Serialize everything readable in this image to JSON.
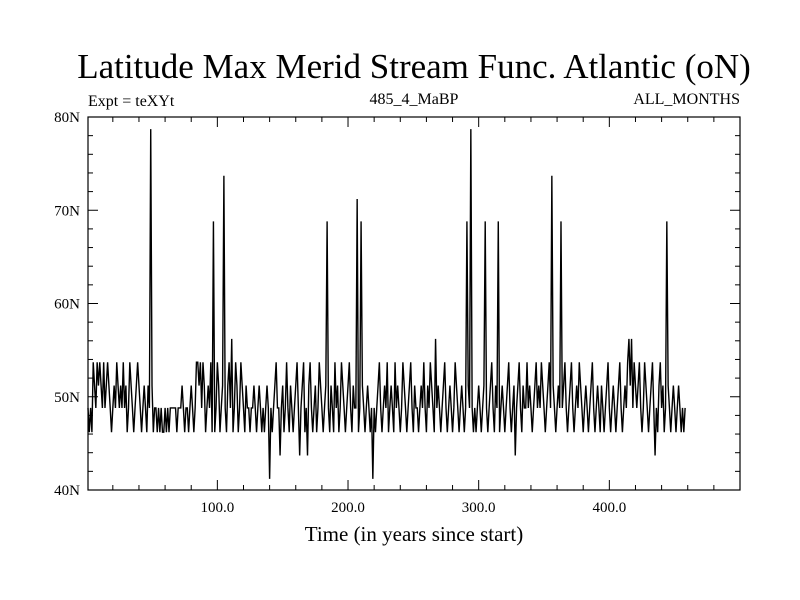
{
  "chart_data": {
    "type": "line",
    "title": "Latitude Max Merid Stream Func. Atlantic (oN)",
    "subtitle_left": "Expt = teXYt",
    "subtitle_center": "485_4_MaBP",
    "subtitle_right": "ALL_MONTHS",
    "xlabel": "Time (in years since start)",
    "ylabel": "",
    "xlim": [
      1,
      500
    ],
    "ylim": [
      40,
      80
    ],
    "x_ticks": [
      100,
      200,
      300,
      400
    ],
    "x_tick_labels": [
      "100.0",
      "200.0",
      "300.0",
      "400.0"
    ],
    "y_ticks": [
      40,
      50,
      60,
      70,
      80
    ],
    "y_tick_labels": [
      "40N",
      "50N",
      "60N",
      "70N",
      "80N"
    ],
    "grid": false,
    "series": [
      {
        "x_start": 1,
        "x_step": 1,
        "values": [
          48.8,
          46.2,
          48.8,
          46.2,
          53.7,
          51.2,
          48.8,
          53.7,
          51.2,
          53.7,
          51.2,
          48.8,
          53.7,
          48.8,
          51.2,
          53.7,
          51.2,
          48.8,
          46.2,
          48.8,
          51.2,
          48.8,
          53.7,
          51.2,
          48.8,
          51.2,
          48.8,
          53.7,
          48.8,
          51.2,
          46.2,
          48.8,
          53.7,
          51.2,
          48.8,
          46.2,
          48.8,
          51.2,
          53.7,
          51.2,
          48.8,
          46.2,
          48.8,
          51.2,
          48.8,
          46.2,
          51.2,
          48.8,
          78.7,
          51.2,
          46.2,
          48.8,
          48.8,
          46.2,
          48.8,
          46.2,
          48.8,
          46.2,
          46.2,
          48.8,
          46.2,
          48.8,
          46.2,
          48.8,
          48.8,
          48.8,
          48.8,
          48.8,
          46.2,
          48.8,
          48.8,
          48.8,
          51.2,
          48.8,
          46.2,
          48.8,
          48.8,
          46.2,
          48.8,
          51.2,
          48.8,
          46.2,
          48.8,
          53.7,
          53.7,
          51.2,
          53.7,
          48.8,
          53.7,
          51.2,
          46.2,
          48.8,
          51.2,
          48.8,
          53.7,
          46.2,
          68.8,
          46.2,
          48.8,
          53.7,
          51.2,
          46.2,
          48.8,
          51.2,
          73.7,
          48.8,
          46.2,
          51.2,
          53.7,
          48.8,
          56.2,
          46.2,
          48.8,
          53.7,
          51.2,
          46.2,
          48.8,
          53.7,
          51.2,
          48.8,
          46.2,
          51.2,
          48.8,
          48.8,
          46.2,
          48.8,
          48.8,
          51.2,
          48.8,
          46.2,
          48.8,
          51.2,
          48.8,
          46.2,
          48.8,
          46.2,
          48.8,
          51.2,
          48.8,
          41.2,
          48.8,
          46.2,
          48.8,
          51.2,
          53.7,
          48.8,
          48.8,
          43.7,
          48.8,
          51.2,
          46.2,
          48.8,
          53.7,
          48.8,
          46.2,
          51.2,
          48.8,
          46.2,
          48.8,
          51.2,
          53.7,
          48.8,
          43.7,
          48.8,
          51.2,
          53.7,
          46.2,
          48.8,
          43.7,
          51.2,
          53.7,
          48.8,
          46.2,
          48.8,
          51.2,
          46.2,
          48.8,
          53.7,
          51.2,
          48.8,
          46.2,
          48.8,
          51.2,
          68.8,
          48.8,
          46.2,
          51.2,
          48.8,
          46.2,
          53.7,
          48.8,
          51.2,
          46.2,
          48.8,
          53.7,
          51.2,
          48.8,
          46.2,
          48.8,
          51.2,
          53.7,
          48.8,
          46.2,
          51.2,
          48.8,
          48.8,
          71.2,
          46.2,
          48.8,
          68.8,
          51.2,
          48.8,
          46.2,
          48.8,
          51.2,
          48.8,
          46.2,
          48.8,
          41.2,
          48.8,
          46.2,
          48.8,
          51.2,
          53.7,
          48.8,
          46.2,
          48.8,
          51.2,
          48.8,
          53.7,
          46.2,
          48.8,
          51.2,
          48.8,
          46.2,
          53.7,
          48.8,
          51.2,
          48.8,
          46.2,
          48.8,
          53.7,
          51.2,
          48.8,
          46.2,
          48.8,
          51.2,
          53.7,
          48.8,
          46.2,
          51.2,
          48.8,
          48.8,
          46.2,
          48.8,
          51.2,
          48.8,
          53.7,
          48.8,
          46.2,
          51.2,
          48.8,
          53.7,
          51.2,
          48.8,
          46.2,
          56.2,
          48.8,
          51.2,
          48.8,
          46.2,
          48.8,
          51.2,
          53.7,
          48.8,
          46.2,
          48.8,
          51.2,
          48.8,
          46.2,
          48.8,
          53.7,
          51.2,
          48.8,
          46.2,
          48.8,
          51.2,
          48.8,
          46.2,
          48.8,
          68.8,
          51.2,
          48.8,
          78.7,
          48.8,
          46.2,
          48.8,
          46.2,
          48.8,
          51.2,
          48.8,
          46.2,
          48.8,
          51.2,
          68.8,
          48.8,
          46.2,
          48.8,
          51.2,
          53.7,
          48.8,
          46.2,
          51.2,
          48.8,
          68.8,
          46.2,
          48.8,
          51.2,
          48.8,
          46.2,
          48.8,
          51.2,
          53.7,
          48.8,
          46.2,
          48.8,
          51.2,
          43.7,
          48.8,
          51.2,
          53.7,
          48.8,
          46.2,
          51.2,
          48.8,
          48.8,
          53.7,
          48.8,
          51.2,
          48.8,
          46.2,
          48.8,
          51.2,
          53.7,
          48.8,
          51.2,
          48.8,
          53.7,
          51.2,
          48.8,
          46.2,
          48.8,
          51.2,
          53.7,
          48.8,
          73.7,
          51.2,
          48.8,
          46.2,
          48.8,
          51.2,
          48.8,
          68.8,
          48.8,
          51.2,
          53.7,
          48.8,
          46.2,
          48.8,
          51.2,
          53.7,
          48.8,
          46.2,
          48.8,
          51.2,
          48.8,
          53.7,
          51.2,
          48.8,
          46.2,
          48.8,
          51.2,
          48.8,
          46.2,
          48.8,
          51.2,
          53.7,
          48.8,
          46.2,
          48.8,
          51.2,
          48.8,
          46.2,
          51.2,
          48.8,
          46.2,
          48.8,
          51.2,
          53.7,
          48.8,
          46.2,
          48.8,
          51.2,
          48.8,
          46.2,
          48.8,
          51.2,
          53.7,
          48.8,
          46.2,
          48.8,
          51.2,
          48.8,
          53.7,
          56.2,
          51.2,
          56.2,
          48.8,
          53.7,
          51.2,
          48.8,
          51.2,
          53.7,
          48.8,
          46.2,
          48.8,
          53.7,
          51.2,
          48.8,
          46.2,
          48.8,
          51.2,
          53.7,
          48.8,
          43.7,
          48.8,
          46.2,
          51.2,
          53.7,
          48.8,
          51.2,
          46.2,
          48.8,
          68.8,
          51.2,
          48.8,
          46.2,
          48.8,
          51.2,
          48.8,
          46.2,
          48.8,
          51.2,
          48.8,
          46.2,
          48.8,
          46.2,
          48.8
        ]
      }
    ]
  }
}
